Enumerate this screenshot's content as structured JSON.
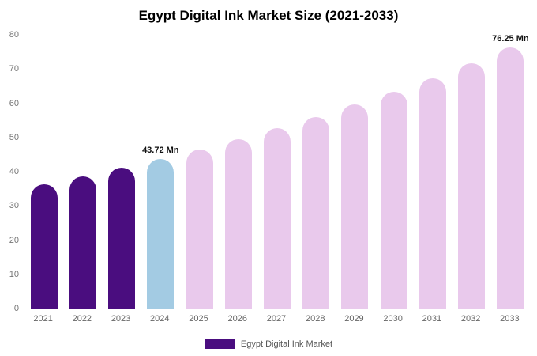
{
  "title": "Egypt Digital Ink Market Size (2021-2033)",
  "legend": {
    "label": "Egypt Digital Ink Market",
    "swatch_color": "#4a0d7f"
  },
  "colors": {
    "historical": "#4a0d7f",
    "current_year": "#a3cbe3",
    "forecast": "#e9c9ec"
  },
  "chart_data": {
    "type": "bar",
    "title": "Egypt Digital Ink Market Size (2021-2033)",
    "categories": [
      "2021",
      "2022",
      "2023",
      "2024",
      "2025",
      "2026",
      "2027",
      "2028",
      "2029",
      "2030",
      "2031",
      "2032",
      "2033"
    ],
    "values": [
      36.3,
      38.6,
      41.1,
      43.72,
      46.5,
      49.5,
      52.7,
      56.0,
      59.6,
      63.4,
      67.4,
      71.7,
      76.25
    ],
    "bar_colors": [
      "#4a0d7f",
      "#4a0d7f",
      "#4a0d7f",
      "#a3cbe3",
      "#e9c9ec",
      "#e9c9ec",
      "#e9c9ec",
      "#e9c9ec",
      "#e9c9ec",
      "#e9c9ec",
      "#e9c9ec",
      "#e9c9ec",
      "#e9c9ec"
    ],
    "annotations": [
      {
        "index": 3,
        "text": "43.72 Mn"
      },
      {
        "index": 12,
        "text": "76.25 Mn"
      }
    ],
    "xlabel": "",
    "ylabel": "",
    "ylim": [
      0,
      80
    ],
    "yticks": [
      0,
      10,
      20,
      30,
      40,
      50,
      60,
      70,
      80
    ],
    "grid": false,
    "legend_position": "bottom",
    "legend_entries": [
      "Egypt Digital Ink Market"
    ],
    "unit": "Mn"
  }
}
